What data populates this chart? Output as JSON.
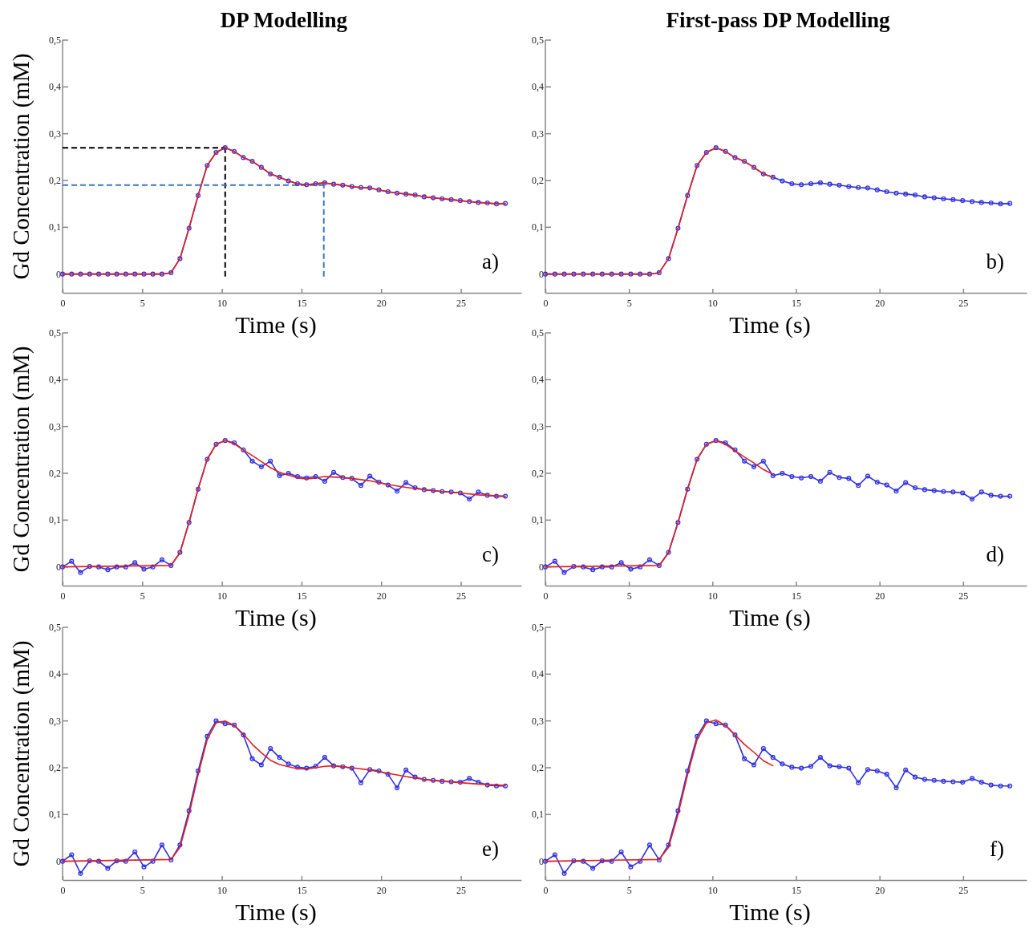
{
  "chart_data": [
    {
      "type": "line",
      "title": "DP Modelling",
      "ylabel": "Gd Concentration (mM)",
      "xlabel": "Time (s)",
      "annotations": [
        "a)"
      ],
      "x": [
        0,
        0.57,
        1.13,
        1.7,
        2.27,
        2.84,
        3.4,
        3.97,
        4.54,
        5.11,
        5.67,
        6.24,
        6.81,
        7.37,
        7.94,
        8.51,
        9.08,
        9.64,
        10.21,
        10.78,
        11.35,
        11.91,
        12.48,
        13.05,
        13.62,
        14.18,
        14.75,
        15.32,
        15.89,
        16.46,
        17.02,
        17.59,
        18.16,
        18.73,
        19.29,
        19.86,
        20.43,
        21.0,
        21.56,
        22.13,
        22.7,
        23.27,
        23.83,
        24.4,
        24.97,
        25.54,
        26.1,
        26.67,
        27.24,
        27.8
      ],
      "xlim": [
        0,
        28.8
      ],
      "xticks": [
        0,
        5,
        10,
        15,
        20,
        25
      ],
      "ylim": [
        -0.04,
        0.5
      ],
      "yticks": [
        {
          "value": 0,
          "label": "0"
        },
        {
          "value": 0.1,
          "label": "0,1"
        },
        {
          "value": 0.2,
          "label": "0,2"
        },
        {
          "value": 0.3,
          "label": "0,3"
        },
        {
          "value": 0.4,
          "label": "0,4"
        },
        {
          "value": 0.5,
          "label": "0,5"
        }
      ],
      "ref_lines": [
        {
          "axis": "y",
          "value": 0.27,
          "color": "#000000",
          "line_style": "dashed"
        },
        {
          "axis": "x",
          "value": 10.21,
          "color": "#000000",
          "line_style": "dashed"
        },
        {
          "axis": "y",
          "value": 0.19,
          "color": "#3a78c0",
          "line_style": "dashed"
        },
        {
          "axis": "x",
          "value": 16.4,
          "color": "#3a78c0",
          "line_style": "dashed"
        }
      ],
      "series": [
        {
          "color": "#3030e0",
          "marker": "circle",
          "values": [
            0,
            0,
            0,
            0,
            0,
            0,
            0,
            0,
            0,
            0,
            0,
            0,
            0.003,
            0.033,
            0.098,
            0.168,
            0.232,
            0.26,
            0.27,
            0.262,
            0.249,
            0.241,
            0.228,
            0.214,
            0.207,
            0.199,
            0.193,
            0.191,
            0.193,
            0.195,
            0.192,
            0.19,
            0.187,
            0.185,
            0.184,
            0.18,
            0.176,
            0.173,
            0.171,
            0.169,
            0.165,
            0.163,
            0.161,
            0.159,
            0.157,
            0.155,
            0.153,
            0.152,
            0.15,
            0.151
          ]
        },
        {
          "color": "#e02020",
          "marker": "none",
          "values": [
            0,
            0,
            0,
            0,
            0,
            0,
            0,
            0,
            0,
            0,
            0,
            0,
            0.003,
            0.033,
            0.098,
            0.168,
            0.232,
            0.26,
            0.27,
            0.262,
            0.249,
            0.241,
            0.228,
            0.214,
            0.207,
            0.199,
            0.193,
            0.191,
            0.193,
            0.195,
            0.192,
            0.19,
            0.187,
            0.185,
            0.184,
            0.18,
            0.176,
            0.173,
            0.171,
            0.169,
            0.165,
            0.163,
            0.161,
            0.159,
            0.157,
            0.155,
            0.153,
            0.152,
            0.15,
            0.151
          ]
        }
      ]
    },
    {
      "type": "line",
      "title": "First-pass DP Modelling",
      "xlabel": "Time (s)",
      "annotations": [
        "b)"
      ],
      "x": [
        0,
        0.57,
        1.13,
        1.7,
        2.27,
        2.84,
        3.4,
        3.97,
        4.54,
        5.11,
        5.67,
        6.24,
        6.81,
        7.37,
        7.94,
        8.51,
        9.08,
        9.64,
        10.21,
        10.78,
        11.35,
        11.91,
        12.48,
        13.05,
        13.62,
        14.18,
        14.75,
        15.32,
        15.89,
        16.46,
        17.02,
        17.59,
        18.16,
        18.73,
        19.29,
        19.86,
        20.43,
        21.0,
        21.56,
        22.13,
        22.7,
        23.27,
        23.83,
        24.4,
        24.97,
        25.54,
        26.1,
        26.67,
        27.24,
        27.8
      ],
      "xlim": [
        0,
        28.8
      ],
      "xticks": [
        0,
        5,
        10,
        15,
        20,
        25
      ],
      "ylim": [
        -0.04,
        0.5
      ],
      "yticks": [
        {
          "value": 0,
          "label": "0"
        },
        {
          "value": 0.1,
          "label": "0,1"
        },
        {
          "value": 0.2,
          "label": "0,2"
        },
        {
          "value": 0.3,
          "label": "0,3"
        },
        {
          "value": 0.4,
          "label": "0,4"
        },
        {
          "value": 0.5,
          "label": "0,5"
        }
      ],
      "series": [
        {
          "color": "#3030e0",
          "marker": "circle",
          "values": [
            0,
            0,
            0,
            0,
            0,
            0,
            0,
            0,
            0,
            0,
            0,
            0,
            0.003,
            0.033,
            0.098,
            0.168,
            0.232,
            0.26,
            0.27,
            0.262,
            0.249,
            0.241,
            0.228,
            0.214,
            0.207,
            0.199,
            0.193,
            0.191,
            0.193,
            0.195,
            0.192,
            0.19,
            0.187,
            0.185,
            0.184,
            0.18,
            0.176,
            0.173,
            0.171,
            0.169,
            0.165,
            0.163,
            0.161,
            0.159,
            0.157,
            0.155,
            0.153,
            0.152,
            0.15,
            0.151
          ]
        },
        {
          "color": "#e02020",
          "marker": "none",
          "x": [
            0,
            0.57,
            1.13,
            1.7,
            2.27,
            2.84,
            3.4,
            3.97,
            4.54,
            5.11,
            5.67,
            6.24,
            6.81,
            7.37,
            7.94,
            8.51,
            9.08,
            9.64,
            10.21,
            10.78,
            11.35,
            11.91,
            12.48,
            13.05,
            13.62
          ],
          "values": [
            0,
            0,
            0,
            0,
            0,
            0,
            0,
            0,
            0,
            0,
            0,
            0,
            0.003,
            0.033,
            0.098,
            0.168,
            0.232,
            0.26,
            0.27,
            0.262,
            0.249,
            0.241,
            0.228,
            0.214,
            0.207
          ]
        }
      ]
    },
    {
      "type": "line",
      "ylabel": "Gd Concentration (mM)",
      "xlabel": "Time (s)",
      "annotations": [
        "c)"
      ],
      "x": [
        0,
        0.57,
        1.13,
        1.7,
        2.27,
        2.84,
        3.4,
        3.97,
        4.54,
        5.11,
        5.67,
        6.24,
        6.81,
        7.37,
        7.94,
        8.51,
        9.08,
        9.64,
        10.21,
        10.78,
        11.35,
        11.91,
        12.48,
        13.05,
        13.62,
        14.18,
        14.75,
        15.32,
        15.89,
        16.46,
        17.02,
        17.59,
        18.16,
        18.73,
        19.29,
        19.86,
        20.43,
        21.0,
        21.56,
        22.13,
        22.7,
        23.27,
        23.83,
        24.4,
        24.97,
        25.54,
        26.1,
        26.67,
        27.24,
        27.8
      ],
      "xlim": [
        0,
        28.8
      ],
      "xticks": [
        0,
        5,
        10,
        15,
        20,
        25
      ],
      "ylim": [
        -0.04,
        0.5
      ],
      "yticks": [
        {
          "value": 0,
          "label": "0"
        },
        {
          "value": 0.1,
          "label": "0,1"
        },
        {
          "value": 0.2,
          "label": "0,2"
        },
        {
          "value": 0.3,
          "label": "0,3"
        },
        {
          "value": 0.4,
          "label": "0,4"
        },
        {
          "value": 0.5,
          "label": "0,5"
        }
      ],
      "series": [
        {
          "color": "#3030e0",
          "marker": "circle",
          "values": [
            0,
            0.012,
            -0.012,
            0.001,
            0,
            -0.006,
            0,
            0,
            0.009,
            -0.005,
            0,
            0.015,
            0.003,
            0.031,
            0.095,
            0.166,
            0.23,
            0.262,
            0.27,
            0.265,
            0.25,
            0.226,
            0.214,
            0.226,
            0.195,
            0.2,
            0.193,
            0.19,
            0.193,
            0.183,
            0.202,
            0.191,
            0.189,
            0.174,
            0.194,
            0.181,
            0.175,
            0.162,
            0.18,
            0.169,
            0.165,
            0.163,
            0.161,
            0.16,
            0.158,
            0.145,
            0.16,
            0.153,
            0.151,
            0.151
          ]
        },
        {
          "color": "#e02020",
          "marker": "none",
          "x": [
            0,
            6.81,
            7.37,
            7.94,
            8.51,
            9.08,
            9.64,
            10.21,
            10.78,
            11.35,
            11.91,
            12.48,
            13.05,
            13.62,
            14.18,
            14.75,
            15.32,
            15.89,
            16.46,
            17.02,
            18.16,
            19.29,
            20.43,
            21.56,
            22.7,
            23.83,
            24.97,
            26.1,
            27.8
          ],
          "values": [
            0,
            0.003,
            0.03,
            0.095,
            0.167,
            0.23,
            0.262,
            0.27,
            0.263,
            0.25,
            0.238,
            0.225,
            0.212,
            0.202,
            0.196,
            0.19,
            0.188,
            0.19,
            0.193,
            0.192,
            0.189,
            0.184,
            0.176,
            0.17,
            0.165,
            0.161,
            0.158,
            0.154,
            0.151
          ]
        }
      ]
    },
    {
      "type": "line",
      "xlabel": "Time (s)",
      "annotations": [
        "d)"
      ],
      "x": [
        0,
        0.57,
        1.13,
        1.7,
        2.27,
        2.84,
        3.4,
        3.97,
        4.54,
        5.11,
        5.67,
        6.24,
        6.81,
        7.37,
        7.94,
        8.51,
        9.08,
        9.64,
        10.21,
        10.78,
        11.35,
        11.91,
        12.48,
        13.05,
        13.62,
        14.18,
        14.75,
        15.32,
        15.89,
        16.46,
        17.02,
        17.59,
        18.16,
        18.73,
        19.29,
        19.86,
        20.43,
        21.0,
        21.56,
        22.13,
        22.7,
        23.27,
        23.83,
        24.4,
        24.97,
        25.54,
        26.1,
        26.67,
        27.24,
        27.8
      ],
      "xlim": [
        0,
        28.8
      ],
      "xticks": [
        0,
        5,
        10,
        15,
        20,
        25
      ],
      "ylim": [
        -0.04,
        0.5
      ],
      "yticks": [
        {
          "value": 0,
          "label": "0"
        },
        {
          "value": 0.1,
          "label": "0,1"
        },
        {
          "value": 0.2,
          "label": "0,2"
        },
        {
          "value": 0.3,
          "label": "0,3"
        },
        {
          "value": 0.4,
          "label": "0,4"
        },
        {
          "value": 0.5,
          "label": "0,5"
        }
      ],
      "series": [
        {
          "color": "#3030e0",
          "marker": "circle",
          "values": [
            0,
            0.012,
            -0.012,
            0.001,
            0,
            -0.006,
            0,
            0,
            0.009,
            -0.005,
            0,
            0.015,
            0.003,
            0.031,
            0.095,
            0.166,
            0.23,
            0.262,
            0.27,
            0.265,
            0.25,
            0.226,
            0.214,
            0.226,
            0.195,
            0.2,
            0.193,
            0.19,
            0.193,
            0.183,
            0.202,
            0.191,
            0.189,
            0.174,
            0.194,
            0.181,
            0.175,
            0.162,
            0.18,
            0.169,
            0.165,
            0.163,
            0.161,
            0.16,
            0.158,
            0.145,
            0.16,
            0.153,
            0.151,
            0.151
          ]
        },
        {
          "color": "#e02020",
          "marker": "none",
          "x": [
            0,
            6.81,
            7.37,
            7.94,
            8.51,
            9.08,
            9.64,
            10.21,
            10.78,
            11.35,
            11.91,
            12.48,
            13.05,
            13.62
          ],
          "values": [
            0,
            0.003,
            0.03,
            0.095,
            0.167,
            0.23,
            0.262,
            0.27,
            0.262,
            0.248,
            0.235,
            0.222,
            0.208,
            0.198
          ]
        }
      ]
    },
    {
      "type": "line",
      "ylabel": "Gd Concentration (mM)",
      "xlabel": "Time (s)",
      "annotations": [
        "e)"
      ],
      "x": [
        0,
        0.57,
        1.13,
        1.7,
        2.27,
        2.84,
        3.4,
        3.97,
        4.54,
        5.11,
        5.67,
        6.24,
        6.81,
        7.37,
        7.94,
        8.51,
        9.08,
        9.64,
        10.21,
        10.78,
        11.35,
        11.91,
        12.48,
        13.05,
        13.62,
        14.18,
        14.75,
        15.32,
        15.89,
        16.46,
        17.02,
        17.59,
        18.16,
        18.73,
        19.29,
        19.86,
        20.43,
        21.0,
        21.56,
        22.13,
        22.7,
        23.27,
        23.83,
        24.4,
        24.97,
        25.54,
        26.1,
        26.67,
        27.24,
        27.8
      ],
      "xlim": [
        0,
        28.8
      ],
      "xticks": [
        0,
        5,
        10,
        15,
        20,
        25
      ],
      "ylim": [
        -0.04,
        0.5
      ],
      "yticks": [
        {
          "value": 0,
          "label": "0"
        },
        {
          "value": 0.1,
          "label": "0,1"
        },
        {
          "value": 0.2,
          "label": "0,2"
        },
        {
          "value": 0.3,
          "label": "0,3"
        },
        {
          "value": 0.4,
          "label": "0,4"
        },
        {
          "value": 0.5,
          "label": "0,5"
        }
      ],
      "series": [
        {
          "color": "#3030e0",
          "marker": "circle",
          "values": [
            0,
            0.014,
            -0.026,
            0.001,
            0,
            -0.015,
            0.001,
            0,
            0.02,
            -0.012,
            0,
            0.035,
            0.003,
            0.035,
            0.108,
            0.193,
            0.267,
            0.3,
            0.294,
            0.291,
            0.27,
            0.219,
            0.206,
            0.241,
            0.222,
            0.208,
            0.201,
            0.199,
            0.203,
            0.222,
            0.204,
            0.202,
            0.199,
            0.168,
            0.196,
            0.193,
            0.186,
            0.157,
            0.195,
            0.18,
            0.175,
            0.173,
            0.171,
            0.17,
            0.169,
            0.177,
            0.169,
            0.163,
            0.161,
            0.161
          ]
        },
        {
          "color": "#e02020",
          "marker": "none",
          "x": [
            0,
            6.81,
            7.37,
            7.94,
            8.51,
            9.08,
            9.64,
            10.21,
            10.78,
            11.35,
            11.91,
            12.48,
            13.05,
            13.62,
            14.18,
            14.75,
            15.32,
            15.89,
            16.46,
            17.02,
            18.16,
            19.29,
            20.43,
            21.56,
            22.7,
            23.83,
            24.97,
            26.1,
            27.8
          ],
          "values": [
            0,
            0.004,
            0.03,
            0.1,
            0.185,
            0.26,
            0.296,
            0.3,
            0.29,
            0.272,
            0.25,
            0.232,
            0.216,
            0.207,
            0.202,
            0.198,
            0.197,
            0.2,
            0.203,
            0.204,
            0.2,
            0.195,
            0.188,
            0.181,
            0.175,
            0.171,
            0.168,
            0.165,
            0.162
          ]
        }
      ]
    },
    {
      "type": "line",
      "xlabel": "Time (s)",
      "annotations": [
        "f)"
      ],
      "x": [
        0,
        0.57,
        1.13,
        1.7,
        2.27,
        2.84,
        3.4,
        3.97,
        4.54,
        5.11,
        5.67,
        6.24,
        6.81,
        7.37,
        7.94,
        8.51,
        9.08,
        9.64,
        10.21,
        10.78,
        11.35,
        11.91,
        12.48,
        13.05,
        13.62,
        14.18,
        14.75,
        15.32,
        15.89,
        16.46,
        17.02,
        17.59,
        18.16,
        18.73,
        19.29,
        19.86,
        20.43,
        21.0,
        21.56,
        22.13,
        22.7,
        23.27,
        23.83,
        24.4,
        24.97,
        25.54,
        26.1,
        26.67,
        27.24,
        27.8
      ],
      "xlim": [
        0,
        28.8
      ],
      "xticks": [
        0,
        5,
        10,
        15,
        20,
        25
      ],
      "ylim": [
        -0.04,
        0.5
      ],
      "yticks": [
        {
          "value": 0,
          "label": "0"
        },
        {
          "value": 0.1,
          "label": "0,1"
        },
        {
          "value": 0.2,
          "label": "0,2"
        },
        {
          "value": 0.3,
          "label": "0,3"
        },
        {
          "value": 0.4,
          "label": "0,4"
        },
        {
          "value": 0.5,
          "label": "0,5"
        }
      ],
      "series": [
        {
          "color": "#3030e0",
          "marker": "circle",
          "values": [
            0,
            0.014,
            -0.026,
            0.001,
            0,
            -0.015,
            0.001,
            0,
            0.02,
            -0.012,
            0,
            0.035,
            0.003,
            0.035,
            0.108,
            0.193,
            0.267,
            0.3,
            0.294,
            0.291,
            0.27,
            0.219,
            0.206,
            0.241,
            0.222,
            0.208,
            0.201,
            0.199,
            0.203,
            0.222,
            0.204,
            0.202,
            0.199,
            0.168,
            0.196,
            0.193,
            0.186,
            0.157,
            0.195,
            0.18,
            0.175,
            0.173,
            0.171,
            0.17,
            0.169,
            0.177,
            0.169,
            0.163,
            0.161,
            0.161
          ]
        },
        {
          "color": "#e02020",
          "marker": "none",
          "x": [
            0,
            6.81,
            7.37,
            7.94,
            8.51,
            9.08,
            9.64,
            10.21,
            10.78,
            11.35,
            11.91,
            12.48,
            13.05,
            13.62
          ],
          "values": [
            0,
            0.004,
            0.03,
            0.1,
            0.185,
            0.26,
            0.296,
            0.302,
            0.29,
            0.27,
            0.25,
            0.233,
            0.215,
            0.204
          ]
        }
      ]
    }
  ]
}
